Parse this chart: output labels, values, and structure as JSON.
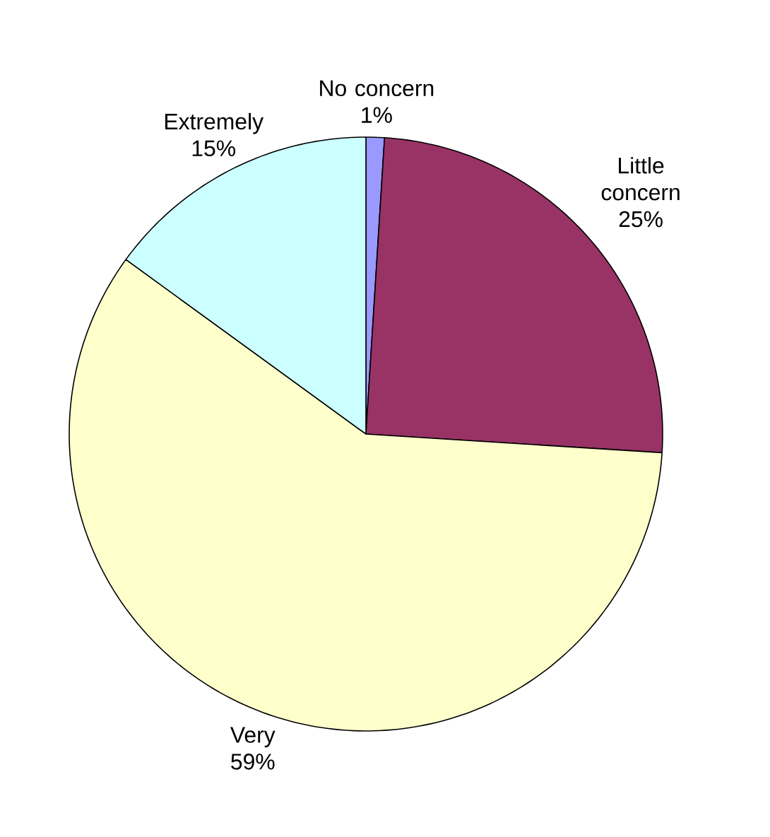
{
  "chart_data": {
    "type": "pie",
    "categories": [
      "No concern",
      "Little concern",
      "Very",
      "Extremely"
    ],
    "values": [
      1,
      25,
      59,
      15
    ],
    "value_labels": [
      "1%",
      "25%",
      "59%",
      "15%"
    ],
    "colors": [
      "#9999ff",
      "#993366",
      "#ffffcc",
      "#ccffff"
    ]
  }
}
